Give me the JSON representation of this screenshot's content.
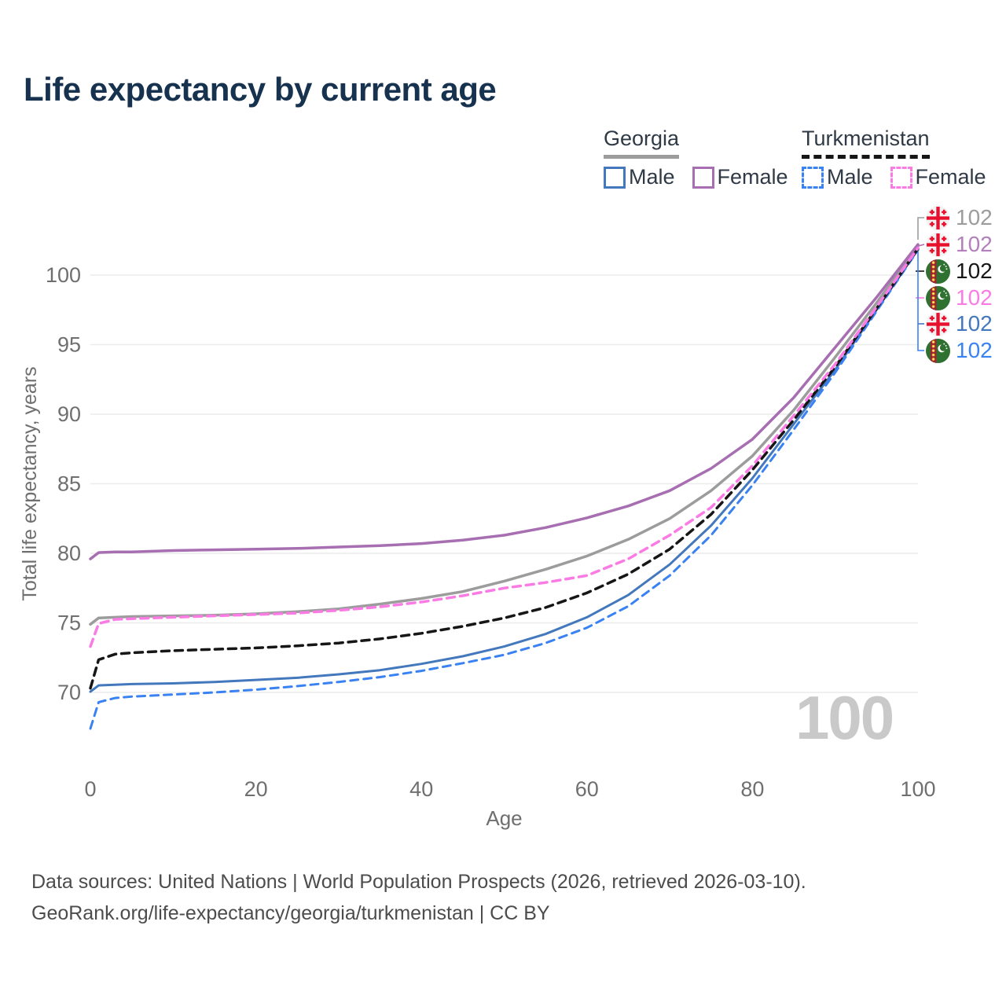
{
  "page": {
    "title": "Life expectancy by current age",
    "watermark": "100",
    "footer_line1": "Data sources: United Nations | World Population Prospects (2026, retrieved 2026-03-10).",
    "footer_line2": "GeoRank.org/life-expectancy/georgia/turkmenistan | CC BY"
  },
  "legend": {
    "groups": [
      {
        "name": "Georgia",
        "line_style": "solid",
        "underline_color": "#9c9c9c",
        "items": [
          {
            "label": "Male",
            "color": "#4478bd",
            "style": "solid"
          },
          {
            "label": "Female",
            "color": "#a76fb2",
            "style": "solid"
          }
        ]
      },
      {
        "name": "Turkmenistan",
        "line_style": "dashed",
        "underline_color": "#161616",
        "items": [
          {
            "label": "Male",
            "color": "#3a82f2",
            "style": "dashed"
          },
          {
            "label": "Female",
            "color": "#fb7be5",
            "style": "dashed"
          }
        ]
      }
    ]
  },
  "annotations": {
    "right_labels": [
      {
        "flag": "georgia",
        "series": "Georgia",
        "value": "102",
        "color": "#9c9c9c"
      },
      {
        "flag": "georgia",
        "series": "Georgia Female",
        "value": "102",
        "color": "#b37fbc"
      },
      {
        "flag": "turkmenistan",
        "series": "Turkmenistan",
        "value": "102",
        "color": "#161616"
      },
      {
        "flag": "turkmenistan",
        "series": "Turkmenistan Female",
        "value": "102",
        "color": "#fb7be5"
      },
      {
        "flag": "georgia",
        "series": "Georgia Male",
        "value": "102",
        "color": "#4478bd"
      },
      {
        "flag": "turkmenistan",
        "series": "Turkmenistan Male",
        "value": "102",
        "color": "#3a82f2"
      }
    ]
  },
  "chart_data": {
    "type": "line",
    "title": "Life expectancy by current age",
    "xlabel": "Age",
    "ylabel": "Total life expectancy, years",
    "xlim": [
      0,
      100
    ],
    "ylim": [
      66,
      103.5
    ],
    "x_ticks": [
      0,
      20,
      40,
      60,
      80,
      100
    ],
    "y_ticks": [
      70,
      75,
      80,
      85,
      90,
      95,
      100
    ],
    "grid": "horizontal",
    "legend_position": "top-right",
    "series": [
      {
        "name": "Georgia",
        "color": "#9c9c9c",
        "dash": "solid",
        "width": 3.5,
        "points": [
          [
            0,
            74.9
          ],
          [
            1,
            75.35
          ],
          [
            3,
            75.4
          ],
          [
            5,
            75.45
          ],
          [
            10,
            75.5
          ],
          [
            15,
            75.55
          ],
          [
            20,
            75.65
          ],
          [
            25,
            75.8
          ],
          [
            30,
            76.0
          ],
          [
            35,
            76.35
          ],
          [
            40,
            76.75
          ],
          [
            45,
            77.25
          ],
          [
            50,
            78.0
          ],
          [
            55,
            78.85
          ],
          [
            60,
            79.8
          ],
          [
            65,
            81.0
          ],
          [
            70,
            82.5
          ],
          [
            75,
            84.5
          ],
          [
            80,
            87.0
          ],
          [
            85,
            90.3
          ],
          [
            90,
            94.1
          ],
          [
            95,
            98.0
          ],
          [
            100,
            102.1
          ]
        ]
      },
      {
        "name": "Georgia Female",
        "color": "#a76fb2",
        "dash": "solid",
        "width": 3.5,
        "points": [
          [
            0,
            79.6
          ],
          [
            1,
            80.05
          ],
          [
            3,
            80.1
          ],
          [
            5,
            80.1
          ],
          [
            10,
            80.2
          ],
          [
            15,
            80.25
          ],
          [
            20,
            80.3
          ],
          [
            25,
            80.35
          ],
          [
            30,
            80.45
          ],
          [
            35,
            80.55
          ],
          [
            40,
            80.7
          ],
          [
            45,
            80.95
          ],
          [
            50,
            81.3
          ],
          [
            55,
            81.85
          ],
          [
            60,
            82.55
          ],
          [
            65,
            83.4
          ],
          [
            70,
            84.5
          ],
          [
            75,
            86.1
          ],
          [
            80,
            88.2
          ],
          [
            85,
            91.2
          ],
          [
            90,
            94.8
          ],
          [
            95,
            98.4
          ],
          [
            100,
            102.2
          ]
        ]
      },
      {
        "name": "Georgia Male",
        "color": "#4478bd",
        "dash": "solid",
        "width": 3,
        "points": [
          [
            0,
            70.05
          ],
          [
            1,
            70.5
          ],
          [
            3,
            70.55
          ],
          [
            5,
            70.6
          ],
          [
            10,
            70.65
          ],
          [
            15,
            70.75
          ],
          [
            20,
            70.9
          ],
          [
            25,
            71.05
          ],
          [
            30,
            71.3
          ],
          [
            35,
            71.6
          ],
          [
            40,
            72.05
          ],
          [
            45,
            72.6
          ],
          [
            50,
            73.3
          ],
          [
            55,
            74.2
          ],
          [
            60,
            75.4
          ],
          [
            65,
            77.0
          ],
          [
            70,
            79.2
          ],
          [
            75,
            82.0
          ],
          [
            80,
            85.4
          ],
          [
            85,
            89.3
          ],
          [
            90,
            93.2
          ],
          [
            95,
            97.5
          ],
          [
            100,
            101.85
          ]
        ]
      },
      {
        "name": "Turkmenistan",
        "color": "#161616",
        "dash": "dashed",
        "width": 3.5,
        "points": [
          [
            0,
            70.3
          ],
          [
            1,
            72.35
          ],
          [
            3,
            72.75
          ],
          [
            5,
            72.85
          ],
          [
            10,
            73.0
          ],
          [
            15,
            73.1
          ],
          [
            20,
            73.2
          ],
          [
            25,
            73.35
          ],
          [
            30,
            73.55
          ],
          [
            35,
            73.85
          ],
          [
            40,
            74.25
          ],
          [
            45,
            74.75
          ],
          [
            50,
            75.35
          ],
          [
            55,
            76.1
          ],
          [
            60,
            77.15
          ],
          [
            65,
            78.5
          ],
          [
            70,
            80.3
          ],
          [
            75,
            82.8
          ],
          [
            80,
            86.0
          ],
          [
            85,
            89.6
          ],
          [
            90,
            93.4
          ],
          [
            95,
            97.6
          ],
          [
            100,
            101.9
          ]
        ]
      },
      {
        "name": "Turkmenistan Female",
        "color": "#fb7be5",
        "dash": "dashed",
        "width": 3.5,
        "points": [
          [
            0,
            73.3
          ],
          [
            1,
            74.95
          ],
          [
            3,
            75.25
          ],
          [
            5,
            75.3
          ],
          [
            10,
            75.4
          ],
          [
            15,
            75.5
          ],
          [
            20,
            75.6
          ],
          [
            25,
            75.7
          ],
          [
            30,
            75.9
          ],
          [
            35,
            76.15
          ],
          [
            40,
            76.5
          ],
          [
            45,
            76.95
          ],
          [
            50,
            77.5
          ],
          [
            55,
            77.9
          ],
          [
            60,
            78.4
          ],
          [
            65,
            79.6
          ],
          [
            70,
            81.3
          ],
          [
            75,
            83.3
          ],
          [
            80,
            86.3
          ],
          [
            85,
            89.9
          ],
          [
            90,
            93.6
          ],
          [
            95,
            97.7
          ],
          [
            100,
            101.95
          ]
        ]
      },
      {
        "name": "Turkmenistan Male",
        "color": "#3a82f2",
        "dash": "dashed",
        "width": 3,
        "points": [
          [
            0,
            67.4
          ],
          [
            1,
            69.3
          ],
          [
            3,
            69.6
          ],
          [
            5,
            69.7
          ],
          [
            10,
            69.85
          ],
          [
            15,
            70.0
          ],
          [
            20,
            70.2
          ],
          [
            25,
            70.45
          ],
          [
            30,
            70.75
          ],
          [
            35,
            71.1
          ],
          [
            40,
            71.55
          ],
          [
            45,
            72.1
          ],
          [
            50,
            72.7
          ],
          [
            55,
            73.55
          ],
          [
            60,
            74.65
          ],
          [
            65,
            76.2
          ],
          [
            70,
            78.4
          ],
          [
            75,
            81.3
          ],
          [
            80,
            84.9
          ],
          [
            85,
            88.9
          ],
          [
            90,
            93.0
          ],
          [
            95,
            97.4
          ],
          [
            100,
            101.8
          ]
        ]
      }
    ]
  }
}
